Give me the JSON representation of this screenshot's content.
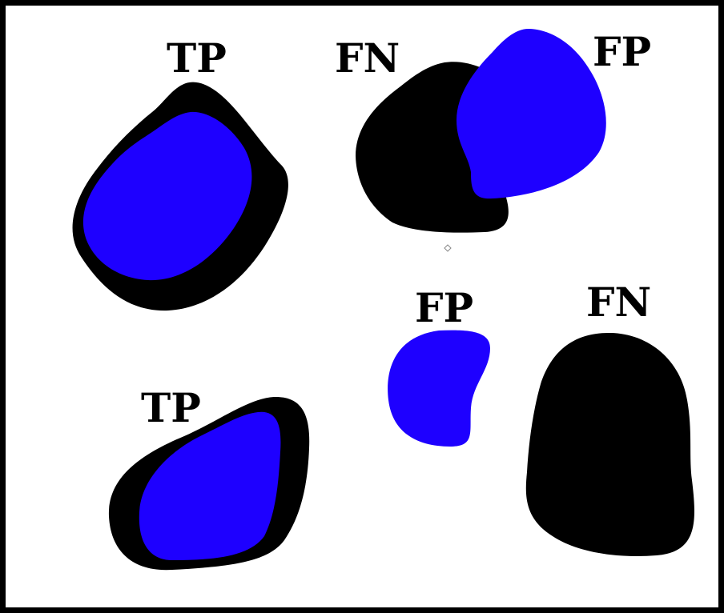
{
  "diagram": {
    "labels": {
      "tp_top": "TP",
      "fn_top": "FN",
      "fp_top": "FP",
      "fp_mid": "FP",
      "fn_right": "FN",
      "tp_bottom": "TP"
    },
    "colors": {
      "ground_truth": "#000000",
      "prediction": "#1e00ff",
      "border": "#000000",
      "background": "#ffffff"
    }
  }
}
